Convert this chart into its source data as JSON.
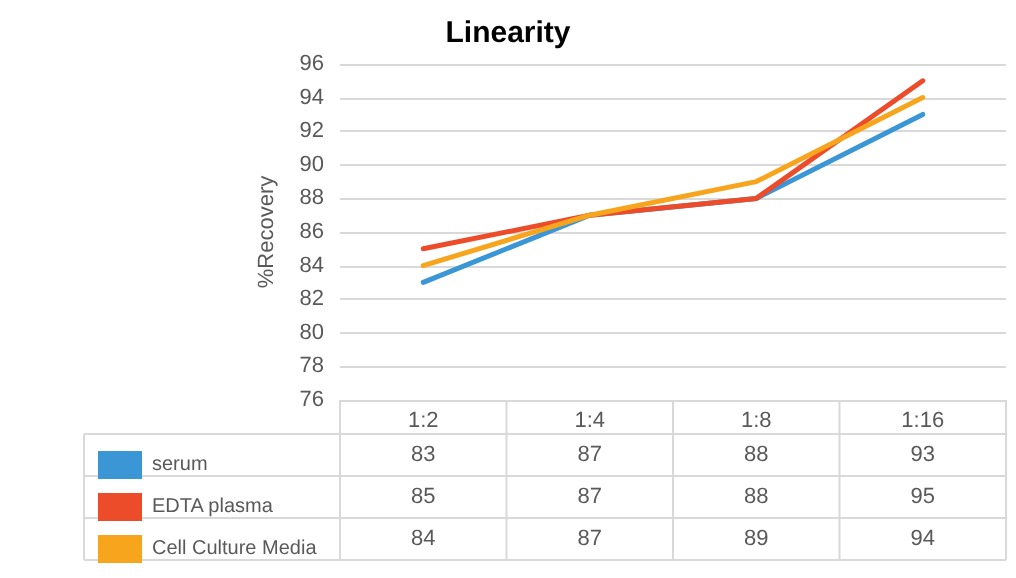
{
  "chart_data": {
    "type": "line",
    "title": "Linearity",
    "ylabel": "%Recovery",
    "categories": [
      "1:2",
      "1:4",
      "1:8",
      "1:16"
    ],
    "series": [
      {
        "name": "serum",
        "color": "#3a96d4",
        "values": [
          83,
          87,
          88,
          93
        ]
      },
      {
        "name": "EDTA plasma",
        "color": "#ec4c2a",
        "values": [
          85,
          87,
          88,
          95
        ]
      },
      {
        "name": "Cell Culture Media",
        "color": "#f7a51c",
        "values": [
          84,
          87,
          89,
          94
        ]
      }
    ],
    "ylim": [
      76,
      96
    ],
    "yticks": [
      76,
      78,
      80,
      82,
      84,
      86,
      88,
      90,
      92,
      94,
      96
    ],
    "grid": "y",
    "legend": "bottom",
    "marker": "none",
    "line_style": "solid",
    "data_labels": true
  }
}
